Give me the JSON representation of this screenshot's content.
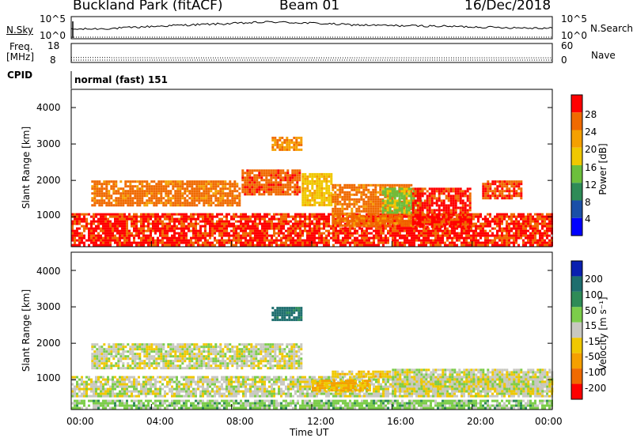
{
  "header": {
    "site": "Buckland Park (fitACF)",
    "beam": "Beam 01",
    "date": "16/Dec/2018"
  },
  "noise_panel": {
    "left_label": "N.Sky",
    "right_label": "N.Search",
    "left_ticks": [
      "10^5",
      "10^0"
    ],
    "right_ticks": [
      "10^5",
      "10^0"
    ]
  },
  "freq_panel": {
    "left_label_1": "Freq.",
    "left_label_2": "[MHz]",
    "right_label": "Nave",
    "left_ticks": [
      "18",
      "8"
    ],
    "right_ticks": [
      "60",
      "0"
    ]
  },
  "cpid_panel": {
    "label": "CPID",
    "value": "normal (fast) 151"
  },
  "power_panel": {
    "ylabel": "Slant Range [km]",
    "yticks": [
      "4000",
      "3000",
      "2000",
      "1000"
    ],
    "colorbar_label": "Power [dB]",
    "colorbar_ticks": [
      "28",
      "24",
      "20",
      "16",
      "12",
      "8",
      "4"
    ],
    "colors": [
      "#0000ff",
      "#1a4fa8",
      "#2e8b57",
      "#6cbf3c",
      "#f0c800",
      "#f5a000",
      "#f06a00",
      "#ff0000"
    ]
  },
  "velocity_panel": {
    "ylabel": "Slant Range [km]",
    "yticks": [
      "4000",
      "3000",
      "2000",
      "1000"
    ],
    "colorbar_label": "Velocity [m s⁻¹]",
    "colorbar_ticks": [
      "200",
      "100",
      "50",
      "15",
      "-15",
      "-50",
      "-100",
      "-200"
    ],
    "colors": [
      "#0a1fb0",
      "#1e6e6e",
      "#2e8b57",
      "#7ccd4a",
      "#c8c8c0",
      "#f0c800",
      "#f5a000",
      "#f06a00",
      "#ff0000"
    ]
  },
  "xaxis": {
    "label": "Time UT",
    "ticks": [
      "00:00",
      "04:00",
      "08:00",
      "12:00",
      "16:00",
      "20:00",
      "00:00"
    ]
  },
  "chart_data": [
    {
      "type": "line",
      "title": "N.Sky",
      "x": [
        0,
        2,
        4,
        6,
        8,
        10,
        12,
        14,
        16,
        18,
        20,
        22,
        24
      ],
      "series": [
        {
          "name": "N.Sky",
          "values": [
            2.1,
            2.3,
            2.8,
            3.2,
            3.5,
            3.9,
            3.6,
            3.2,
            3.0,
            2.9,
            2.7,
            2.5,
            2.4
          ]
        }
      ],
      "xlabel": "Time UT",
      "ylim": [
        0,
        5
      ]
    },
    {
      "type": "scatter",
      "title": "Freq.",
      "x": [
        0,
        2,
        4,
        6,
        8,
        10,
        12,
        14,
        16,
        18,
        20,
        22,
        24
      ],
      "series": [
        {
          "name": "Freq.",
          "values": [
            10.4,
            10.3,
            10.2,
            10.2,
            10.2,
            10.2,
            10.2,
            10.2,
            10.2,
            10.2,
            10.2,
            10.2,
            10.2
          ]
        }
      ],
      "xlabel": "Time UT",
      "ylim": [
        8,
        18
      ]
    },
    {
      "type": "heatmap",
      "title": "Power [dB]",
      "xlabel": "Time UT",
      "ylabel": "Slant Range [km]",
      "xlim": [
        0,
        24
      ],
      "ylim": [
        180,
        4500
      ],
      "zlim": [
        0,
        30
      ],
      "regions": [
        {
          "t0": 0.0,
          "t1": 24.0,
          "r0": 180,
          "r1": 1100,
          "value": 27
        },
        {
          "t0": 1.0,
          "t1": 8.5,
          "r0": 1300,
          "r1": 2000,
          "value": 24
        },
        {
          "t0": 8.5,
          "t1": 11.5,
          "r0": 1600,
          "r1": 2300,
          "value": 25
        },
        {
          "t0": 10.0,
          "t1": 11.5,
          "r0": 2800,
          "r1": 3200,
          "value": 22
        },
        {
          "t0": 11.5,
          "t1": 13.0,
          "r0": 1300,
          "r1": 2200,
          "value": 18
        },
        {
          "t0": 13.0,
          "t1": 17.0,
          "r0": 700,
          "r1": 1900,
          "value": 24
        },
        {
          "t0": 15.5,
          "t1": 17.5,
          "r0": 1100,
          "r1": 1800,
          "value": 14
        },
        {
          "t0": 17.0,
          "t1": 20.0,
          "r0": 700,
          "r1": 1800,
          "value": 27
        },
        {
          "t0": 20.5,
          "t1": 22.5,
          "r0": 1500,
          "r1": 2000,
          "value": 26
        }
      ]
    },
    {
      "type": "heatmap",
      "title": "Velocity [m s⁻¹]",
      "xlabel": "Time UT",
      "ylabel": "Slant Range [km]",
      "xlim": [
        0,
        24
      ],
      "ylim": [
        180,
        4500
      ],
      "zlim": [
        -200,
        200
      ],
      "regions": [
        {
          "t0": 0.0,
          "t1": 24.0,
          "r0": 500,
          "r1": 1100,
          "value": 0
        },
        {
          "t0": 0.0,
          "t1": 24.0,
          "r0": 180,
          "r1": 450,
          "value": 30
        },
        {
          "t0": 1.0,
          "t1": 11.5,
          "r0": 1300,
          "r1": 2000,
          "value": 0
        },
        {
          "t0": 10.0,
          "t1": 11.5,
          "r0": 2600,
          "r1": 3000,
          "value": 120
        },
        {
          "t0": 12.0,
          "t1": 15.0,
          "r0": 650,
          "r1": 1000,
          "value": -50
        },
        {
          "t0": 13.0,
          "t1": 16.0,
          "r0": 1050,
          "r1": 1250,
          "value": -30
        },
        {
          "t0": 16.0,
          "t1": 24.0,
          "r0": 650,
          "r1": 1300,
          "value": 0
        }
      ]
    }
  ]
}
